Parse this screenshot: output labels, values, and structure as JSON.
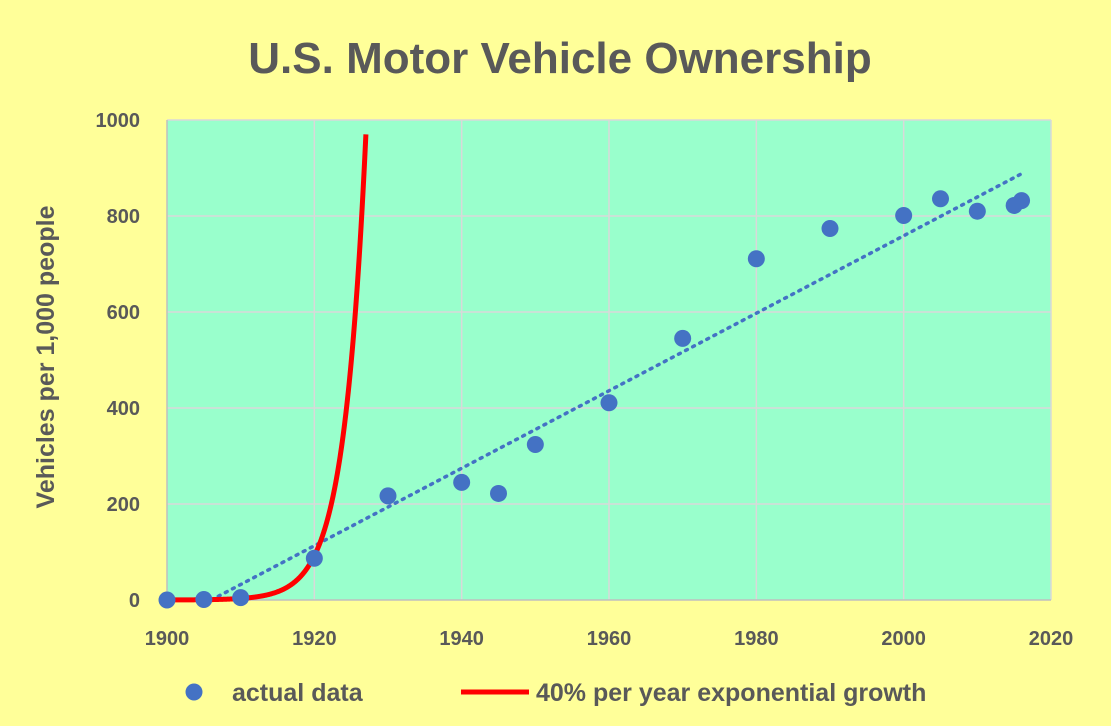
{
  "chart_data": {
    "type": "scatter",
    "title": "U.S. Motor Vehicle Ownership",
    "xlabel": "",
    "ylabel": "Vehicles per 1,000 people",
    "xlim": [
      1900,
      2020
    ],
    "ylim": [
      0,
      1000
    ],
    "xticks": [
      1900,
      1920,
      1940,
      1960,
      1980,
      2000,
      2020
    ],
    "yticks": [
      0,
      200,
      400,
      600,
      800,
      1000
    ],
    "grid": true,
    "legend_position": "bottom",
    "colors": {
      "background": "#ffff99",
      "plot_area": "#99ffcc",
      "points": "#4472c4",
      "exponential": "#ff0000",
      "trend": "#4472c4",
      "text": "#595959"
    },
    "series": [
      {
        "name": "actual data",
        "kind": "scatter",
        "points": [
          [
            1900,
            0
          ],
          [
            1905,
            1
          ],
          [
            1910,
            5
          ],
          [
            1920,
            87
          ],
          [
            1930,
            217
          ],
          [
            1940,
            245
          ],
          [
            1945,
            222
          ],
          [
            1950,
            324
          ],
          [
            1960,
            411
          ],
          [
            1970,
            545
          ],
          [
            1980,
            711
          ],
          [
            1990,
            774
          ],
          [
            2000,
            801
          ],
          [
            2005,
            836
          ],
          [
            2010,
            810
          ],
          [
            2015,
            822
          ],
          [
            2016,
            832
          ]
        ]
      },
      {
        "name": "40% per year exponential growth",
        "kind": "line",
        "base_year": 1900,
        "base_value": 0.11,
        "annual_growth_rate": 0.4,
        "x_range": [
          1900,
          1927
        ]
      },
      {
        "name": "",
        "kind": "trendline",
        "style": "dotted",
        "points": [
          [
            1906,
            0
          ],
          [
            2016,
            888
          ]
        ]
      }
    ]
  }
}
